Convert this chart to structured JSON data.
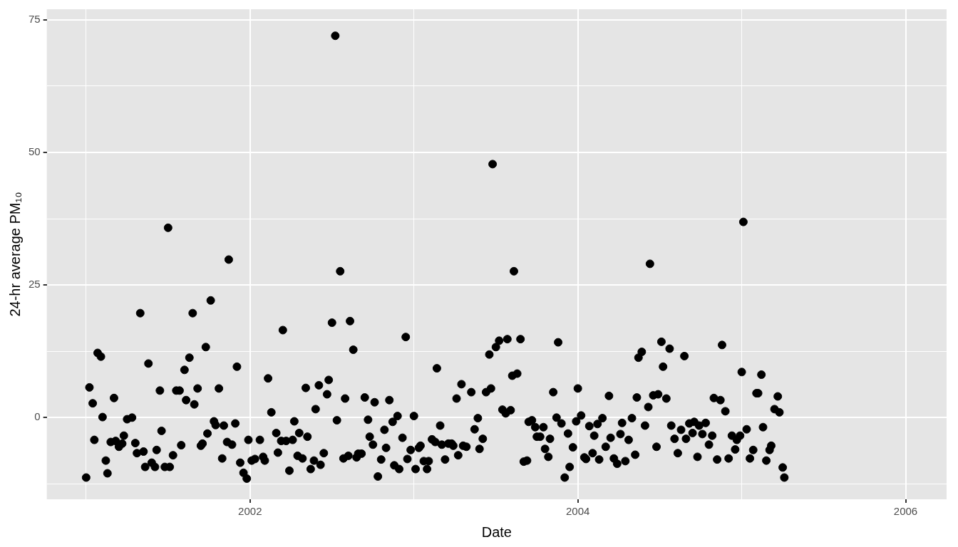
{
  "chart_data": {
    "type": "scatter",
    "xlabel": "Date",
    "ylabel": "24-hr average PM₁₀",
    "color": "#000000",
    "marker": "circle",
    "grid": true,
    "xlim": [
      2000.76,
      2006.25
    ],
    "xticks": [
      {
        "value": 2001,
        "label": null
      },
      2002,
      {
        "value": 2003,
        "label": null
      },
      2004,
      {
        "value": 2005,
        "label": null
      },
      2006
    ],
    "ylim": [
      -15.4,
      77
    ],
    "yticks": [
      {
        "value": -12.5,
        "label": null
      },
      0,
      {
        "value": 12.5,
        "label": null
      },
      25,
      {
        "value": 37.5,
        "label": null
      },
      50,
      {
        "value": 62.5,
        "label": null
      },
      75
    ],
    "x": [
      2001.0,
      2001.02,
      2001.04,
      2001.05,
      2001.07,
      2001.09,
      2001.1,
      2001.12,
      2001.13,
      2001.15,
      2001.17,
      2001.18,
      2001.2,
      2001.22,
      2001.23,
      2001.25,
      2001.28,
      2001.3,
      2001.31,
      2001.33,
      2001.35,
      2001.36,
      2001.38,
      2001.4,
      2001.42,
      2001.43,
      2001.45,
      2001.46,
      2001.48,
      2001.5,
      2001.51,
      2001.53,
      2001.55,
      2001.57,
      2001.58,
      2001.6,
      2001.61,
      2001.63,
      2001.65,
      2001.66,
      2001.68,
      2001.7,
      2001.71,
      2001.73,
      2001.74,
      2001.76,
      2001.78,
      2001.79,
      2001.81,
      2001.83,
      2001.84,
      2001.86,
      2001.87,
      2001.89,
      2001.91,
      2001.92,
      2001.94,
      2001.96,
      2001.98,
      2001.99,
      2002.01,
      2002.03,
      2002.06,
      2002.08,
      2002.09,
      2002.11,
      2002.13,
      2002.16,
      2002.17,
      2002.19,
      2002.2,
      2002.22,
      2002.24,
      2002.26,
      2002.27,
      2002.29,
      2002.3,
      2002.32,
      2002.34,
      2002.35,
      2002.37,
      2002.39,
      2002.4,
      2002.42,
      2002.43,
      2002.45,
      2002.47,
      2002.48,
      2002.5,
      2002.52,
      2002.53,
      2002.55,
      2002.57,
      2002.58,
      2002.6,
      2002.61,
      2002.63,
      2002.65,
      2002.66,
      2002.68,
      2002.7,
      2002.72,
      2002.73,
      2002.75,
      2002.76,
      2002.78,
      2002.8,
      2002.82,
      2002.83,
      2002.85,
      2002.87,
      2002.88,
      2002.9,
      2002.91,
      2002.93,
      2002.95,
      2002.96,
      2002.98,
      2003.0,
      2003.01,
      2003.03,
      2003.04,
      2003.06,
      2003.08,
      2003.09,
      2003.11,
      2003.13,
      2003.14,
      2003.16,
      2003.17,
      2003.19,
      2003.21,
      2003.23,
      2003.24,
      2003.26,
      2003.27,
      2003.29,
      2003.3,
      2003.32,
      2003.35,
      2003.37,
      2003.39,
      2003.4,
      2003.42,
      2003.44,
      2003.46,
      2003.47,
      2003.48,
      2003.5,
      2003.52,
      2003.54,
      2003.56,
      2003.57,
      2003.59,
      2003.6,
      2003.61,
      2003.63,
      2003.65,
      2003.67,
      2003.69,
      2003.7,
      2003.72,
      2003.74,
      2003.75,
      2003.77,
      2003.79,
      2003.8,
      2003.82,
      2003.83,
      2003.85,
      2003.87,
      2003.88,
      2003.9,
      2003.92,
      2003.94,
      2003.95,
      2003.97,
      2003.99,
      2004.0,
      2004.02,
      2004.04,
      2004.05,
      2004.07,
      2004.09,
      2004.1,
      2004.12,
      2004.13,
      2004.15,
      2004.17,
      2004.19,
      2004.2,
      2004.22,
      2004.24,
      2004.26,
      2004.27,
      2004.29,
      2004.31,
      2004.33,
      2004.35,
      2004.36,
      2004.37,
      2004.39,
      2004.41,
      2004.43,
      2004.44,
      2004.46,
      2004.48,
      2004.49,
      2004.51,
      2004.52,
      2004.54,
      2004.56,
      2004.57,
      2004.59,
      2004.61,
      2004.63,
      2004.65,
      2004.66,
      2004.68,
      2004.7,
      2004.71,
      2004.73,
      2004.74,
      2004.76,
      2004.78,
      2004.8,
      2004.82,
      2004.83,
      2004.85,
      2004.87,
      2004.88,
      2004.9,
      2004.92,
      2004.94,
      2004.96,
      2004.97,
      2004.99,
      2005.0,
      2005.01,
      2005.03,
      2005.05,
      2005.07,
      2005.09,
      2005.1,
      2005.12,
      2005.13,
      2005.15,
      2005.17,
      2005.18,
      2005.2,
      2005.22,
      2005.23,
      2005.25,
      2005.26
    ],
    "values": [
      -11.3,
      5.7,
      2.7,
      -4.2,
      12.2,
      11.5,
      0.1,
      -8.1,
      -10.5,
      -4.6,
      3.7,
      -4.4,
      -5.5,
      -4.9,
      -3.4,
      -0.3,
      0,
      -4.8,
      -6.7,
      19.7,
      -6.4,
      -9.3,
      10.2,
      -8.5,
      -9.3,
      -6.1,
      5.1,
      -2.5,
      -9.3,
      35.8,
      -9.3,
      -7.1,
      5.1,
      5.1,
      -5.2,
      9.0,
      3.3,
      11.3,
      19.7,
      2.5,
      5.5,
      -5.3,
      -4.9,
      13.3,
      -3.0,
      22.1,
      -0.7,
      -1.4,
      5.5,
      -7.7,
      -1.5,
      -4.6,
      29.8,
      -5.1,
      -1.1,
      9.6,
      -8.5,
      -10.4,
      -11.5,
      -4.2,
      -8.1,
      -7.8,
      -4.2,
      -7.4,
      -8.1,
      7.4,
      1.0,
      -2.9,
      -6.6,
      -4.4,
      16.5,
      -4.4,
      -10.0,
      -4.2,
      -0.7,
      -7.2,
      -2.9,
      -7.7,
      5.6,
      -3.6,
      -9.7,
      -8.1,
      1.6,
      6.1,
      -8.9,
      -6.7,
      4.4,
      7.1,
      17.9,
      72.0,
      -0.5,
      27.6,
      -7.7,
      3.6,
      -7.2,
      18.2,
      12.8,
      -7.5,
      -6.8,
      -6.8,
      3.8,
      -0.4,
      -3.6,
      -5.1,
      2.9,
      -11.1,
      -7.9,
      -2.3,
      -5.7,
      3.3,
      -0.8,
      -9.0,
      0.3,
      -9.7,
      -3.8,
      15.2,
      -7.8,
      -6.1,
      0.3,
      -9.7,
      -5.7,
      -5.3,
      -8.2,
      -9.7,
      -8.2,
      -4.1,
      -4.6,
      9.3,
      -1.5,
      -5.1,
      -7.9,
      -4.9,
      -4.9,
      -5.3,
      3.6,
      -7.1,
      6.3,
      -5.3,
      -5.5,
      4.8,
      -2.2,
      -0.1,
      -5.9,
      -4.0,
      4.8,
      11.9,
      5.5,
      47.8,
      13.3,
      14.5,
      1.5,
      0.8,
      14.8,
      1.4,
      7.9,
      27.6,
      8.3,
      14.8,
      -8.3,
      -8.1,
      -0.8,
      -0.5,
      -1.8,
      -3.6,
      -3.6,
      -1.8,
      -5.9,
      -7.4,
      -4.0,
      4.8,
      0,
      14.2,
      -1.1,
      -11.3,
      -3.0,
      -9.3,
      -5.6,
      -0.7,
      5.5,
      0.4,
      -7.5,
      -7.8,
      -1.6,
      -6.7,
      -3.4,
      -1.2,
      -7.9,
      -0.1,
      -5.5,
      4.1,
      -3.8,
      -7.7,
      -8.7,
      -3.1,
      -1.0,
      -8.2,
      -4.2,
      -0.1,
      -7.0,
      3.8,
      11.3,
      12.4,
      -1.5,
      2.0,
      29.0,
      4.2,
      -5.5,
      4.4,
      14.3,
      9.6,
      3.6,
      13.0,
      -1.5,
      -4.0,
      -6.7,
      -2.3,
      11.6,
      -4.0,
      -1.1,
      -2.9,
      -0.8,
      -7.4,
      -1.5,
      -3.1,
      -1.0,
      -5.1,
      -3.4,
      3.7,
      -7.9,
      3.3,
      13.7,
      1.2,
      -7.7,
      -3.4,
      -6.0,
      -4.2,
      -3.4,
      8.6,
      36.9,
      -2.2,
      -7.7,
      -6.1,
      4.6,
      4.6,
      8.1,
      -1.8,
      -8.1,
      -6.1,
      -5.3,
      1.6,
      4.0,
      1.0,
      -9.4,
      -11.3
    ]
  }
}
